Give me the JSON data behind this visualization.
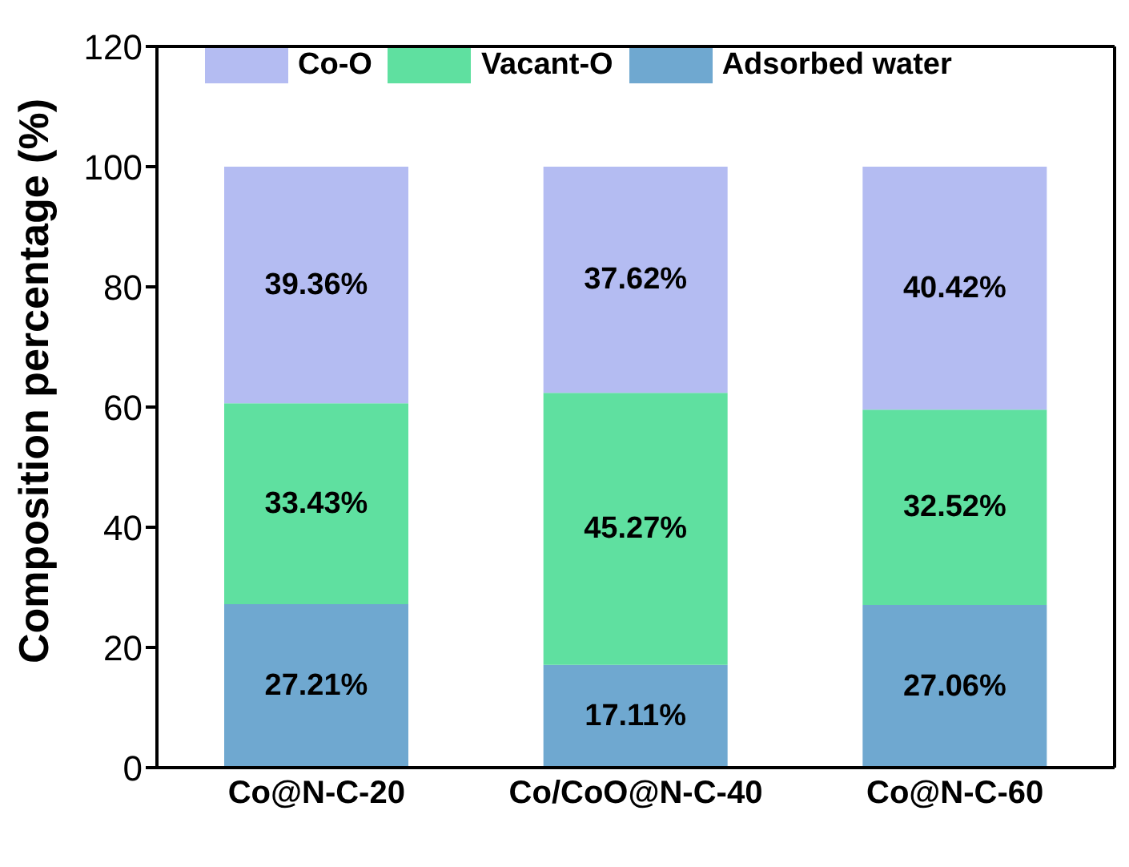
{
  "chart_data": {
    "type": "bar",
    "stacked": true,
    "ylabel": "Composition percentage (%)",
    "categories": [
      "Co@N-C-20",
      "Co/CoO@N-C-40",
      "Co@N-C-60"
    ],
    "series": [
      {
        "name": "Adsorbed water",
        "color": "#6fa8d0",
        "values": [
          27.21,
          17.11,
          27.06
        ],
        "value_labels": [
          "27.21%",
          "17.11%",
          "27.06%"
        ]
      },
      {
        "name": "Vacant-O",
        "color": "#5fe0a0",
        "values": [
          33.43,
          45.27,
          32.52
        ],
        "value_labels": [
          "33.43%",
          "45.27%",
          "32.52%"
        ]
      },
      {
        "name": "Co-O",
        "color": "#b4bcf2",
        "values": [
          39.36,
          37.62,
          40.42
        ],
        "value_labels": [
          "39.36%",
          "37.62%",
          "40.42%"
        ]
      }
    ],
    "ylim": [
      0,
      120
    ],
    "yticks": [
      0,
      20,
      40,
      60,
      80,
      100,
      120
    ],
    "grid": false,
    "legend": "top"
  }
}
